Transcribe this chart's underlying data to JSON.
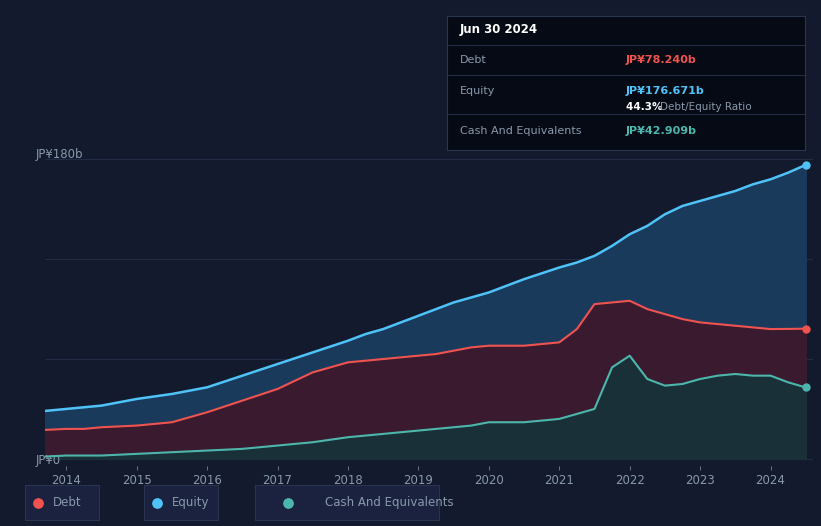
{
  "background_color": "#131a2e",
  "plot_bg": "#131a2e",
  "tooltip": {
    "date": "Jun 30 2024",
    "debt_label": "Debt",
    "debt_value": "JP¥78.240b",
    "equity_label": "Equity",
    "equity_value": "JP¥176.671b",
    "ratio_value": "44.3%",
    "ratio_label": "Debt/Equity Ratio",
    "cash_label": "Cash And Equivalents",
    "cash_value": "JP¥42.909b"
  },
  "years": [
    2013.5,
    2014.0,
    2014.25,
    2014.5,
    2015.0,
    2015.5,
    2016.0,
    2016.5,
    2017.0,
    2017.5,
    2018.0,
    2018.25,
    2018.5,
    2018.75,
    2019.0,
    2019.25,
    2019.5,
    2019.75,
    2020.0,
    2020.25,
    2020.5,
    2021.0,
    2021.25,
    2021.5,
    2021.75,
    2022.0,
    2022.25,
    2022.5,
    2022.75,
    2023.0,
    2023.25,
    2023.5,
    2023.75,
    2024.0,
    2024.25,
    2024.5
  ],
  "equity": [
    28,
    30,
    31,
    32,
    36,
    39,
    43,
    50,
    57,
    64,
    71,
    75,
    78,
    82,
    86,
    90,
    94,
    97,
    100,
    104,
    108,
    115,
    118,
    122,
    128,
    135,
    140,
    147,
    152,
    155,
    158,
    161,
    165,
    168,
    172,
    176.671
  ],
  "debt": [
    17,
    18,
    18,
    19,
    20,
    22,
    28,
    35,
    42,
    52,
    58,
    59,
    60,
    61,
    62,
    63,
    65,
    67,
    68,
    68,
    68,
    70,
    78,
    93,
    94,
    95,
    90,
    87,
    84,
    82,
    81,
    80,
    79,
    78,
    78.1,
    78.24
  ],
  "cash": [
    1,
    2,
    2,
    2,
    3,
    4,
    5,
    6,
    8,
    10,
    13,
    14,
    15,
    16,
    17,
    18,
    19,
    20,
    22,
    22,
    22,
    24,
    27,
    30,
    55,
    62,
    48,
    44,
    45,
    48,
    50,
    51,
    50,
    50,
    46,
    42.909
  ],
  "y_label_0": "JP¥0",
  "y_label_180": "JP¥180b",
  "line_color_equity": "#4fc3f7",
  "line_color_debt": "#ef5350",
  "line_color_cash": "#4db6ac",
  "fill_color_equity": "#1a3a5c",
  "fill_color_debt": "#3a1a2e",
  "fill_color_cash": "#1a3038",
  "grid_color": "#2a3550",
  "text_color": "#8899aa",
  "tooltip_bg": "#050a14",
  "tooltip_border": "#2a3550",
  "legend_item_bg": "#1a2240",
  "legend_border": "#2a3550"
}
